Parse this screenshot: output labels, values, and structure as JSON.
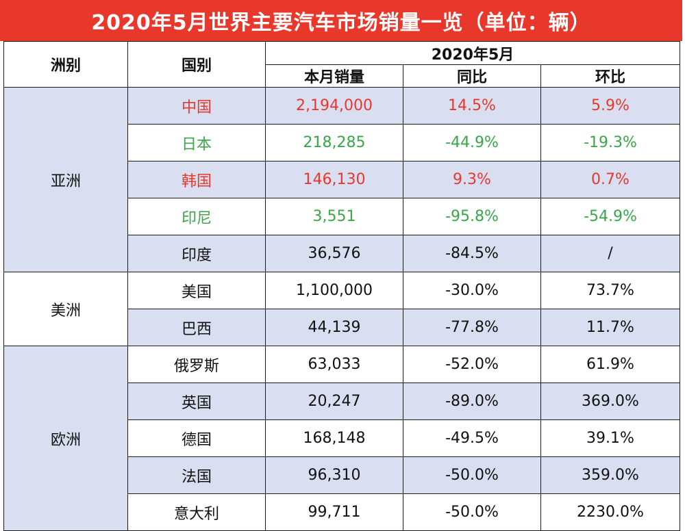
{
  "title": "2020年5月世界主要汽车市场销量一览（单位：辆）",
  "headers": {
    "continent": "洲别",
    "country": "国别",
    "period": "2020年5月",
    "sales": "本月销量",
    "yoy": "同比",
    "mom": "环比"
  },
  "colors": {
    "title_bg": "#e8382b",
    "row_shade": "#d9dff0",
    "positive": "#e8382b",
    "negative": "#3aa64a"
  },
  "groups": [
    {
      "continent": "亚洲",
      "rows": [
        {
          "country": "中国",
          "sales": "2,194,000",
          "yoy": "14.5%",
          "mom": "5.9%",
          "tone": "red",
          "shade": true
        },
        {
          "country": "日本",
          "sales": "218,285",
          "yoy": "-44.9%",
          "mom": "-19.3%",
          "tone": "green",
          "shade": false
        },
        {
          "country": "韩国",
          "sales": "146,130",
          "yoy": "9.3%",
          "mom": "0.7%",
          "tone": "red",
          "shade": true
        },
        {
          "country": "印尼",
          "sales": "3,551",
          "yoy": "-95.8%",
          "mom": "-54.9%",
          "tone": "green",
          "shade": false
        },
        {
          "country": "印度",
          "sales": "36,576",
          "yoy": "-84.5%",
          "mom": "/",
          "tone": "",
          "shade": true
        }
      ]
    },
    {
      "continent": "美洲",
      "rows": [
        {
          "country": "美国",
          "sales": "1,100,000",
          "yoy": "-30.0%",
          "mom": "73.7%",
          "tone": "",
          "shade": false
        },
        {
          "country": "巴西",
          "sales": "44,139",
          "yoy": "-77.8%",
          "mom": "11.7%",
          "tone": "",
          "shade": true
        }
      ]
    },
    {
      "continent": "欧洲",
      "rows": [
        {
          "country": "俄罗斯",
          "sales": "63,033",
          "yoy": "-52.0%",
          "mom": "61.9%",
          "tone": "",
          "shade": false
        },
        {
          "country": "英国",
          "sales": "20,247",
          "yoy": "-89.0%",
          "mom": "369.0%",
          "tone": "",
          "shade": true
        },
        {
          "country": "德国",
          "sales": "168,148",
          "yoy": "-49.5%",
          "mom": "39.1%",
          "tone": "",
          "shade": false
        },
        {
          "country": "法国",
          "sales": "96,310",
          "yoy": "-50.0%",
          "mom": "359.0%",
          "tone": "",
          "shade": true
        },
        {
          "country": "意大利",
          "sales": "99,711",
          "yoy": "-50.0%",
          "mom": "2230.0%",
          "tone": "",
          "shade": false
        }
      ]
    }
  ]
}
